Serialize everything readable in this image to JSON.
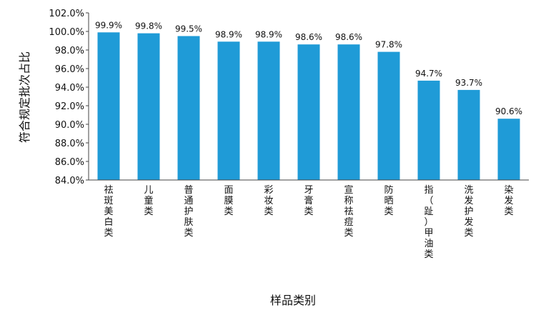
{
  "chart_data": {
    "type": "bar",
    "categories": [
      "祛斑美白类",
      "儿童类",
      "普通护肤类",
      "面膜类",
      "彩妆类",
      "牙膏类",
      "宣称祛痘类",
      "防晒类",
      "指（趾）甲油类",
      "洗发护发类",
      "染发类"
    ],
    "values": [
      99.9,
      99.8,
      99.5,
      98.9,
      98.9,
      98.6,
      98.6,
      97.8,
      94.7,
      93.7,
      90.6
    ],
    "data_labels": [
      "99.9%",
      "99.8%",
      "99.5%",
      "98.9%",
      "98.9%",
      "98.6%",
      "98.6%",
      "97.8%",
      "94.7%",
      "93.7%",
      "90.6%"
    ],
    "yticks": [
      "84.0%",
      "86.0%",
      "88.0%",
      "90.0%",
      "92.0%",
      "94.0%",
      "96.0%",
      "98.0%",
      "100.0%",
      "102.0%"
    ],
    "ylim": [
      84,
      102
    ],
    "xlabel": "样品类别",
    "ylabel": "符合规定批次占比",
    "bar_color": "#1f9bd7",
    "grid": false,
    "legend": "none"
  }
}
